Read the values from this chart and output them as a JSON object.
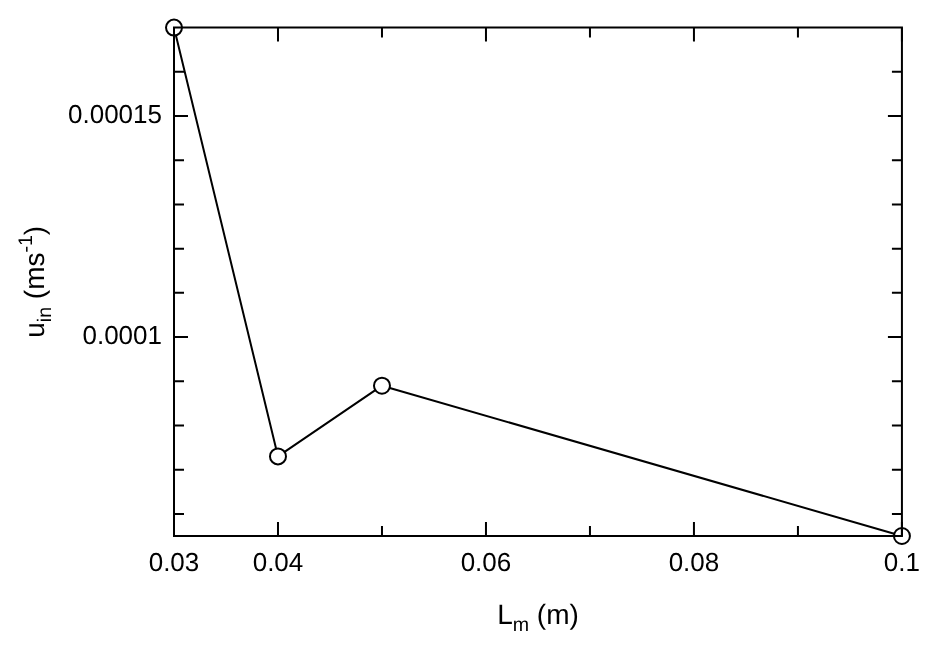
{
  "chart_data": {
    "type": "line",
    "xlabel": "L$_{m}$ (m)",
    "ylabel": "u$_{in}$ (ms$^{-1}$)",
    "x": [
      0.03,
      0.04,
      0.05,
      0.1
    ],
    "series": [
      {
        "color": "#000000",
        "values": [
          0.00017,
          7.3e-05,
          8.9e-05,
          5.5e-05
        ]
      }
    ],
    "xlim": [
      0.03,
      0.1
    ],
    "xticks": [
      0.03,
      0.04,
      {
        "value": 0.05,
        "label": null
      },
      0.06,
      {
        "value": 0.07,
        "label": null
      },
      0.08,
      {
        "value": 0.09,
        "label": null
      },
      0.1
    ],
    "ylim": [
      5.5e-05,
      0.00017
    ],
    "yticks": [
      {
        "value": 6e-05,
        "label": null
      },
      {
        "value": 7e-05,
        "label": null
      },
      {
        "value": 8e-05,
        "label": null
      },
      {
        "value": 9e-05,
        "label": null
      },
      0.0001,
      {
        "value": 0.00011,
        "label": null
      },
      {
        "value": 0.00012,
        "label": null
      },
      {
        "value": 0.00013,
        "label": null
      },
      {
        "value": 0.00014,
        "label": null
      },
      0.00015,
      {
        "value": 0.00016,
        "label": null
      }
    ],
    "grid": false,
    "legend": false,
    "marker": "circle",
    "line_style": "solid"
  }
}
